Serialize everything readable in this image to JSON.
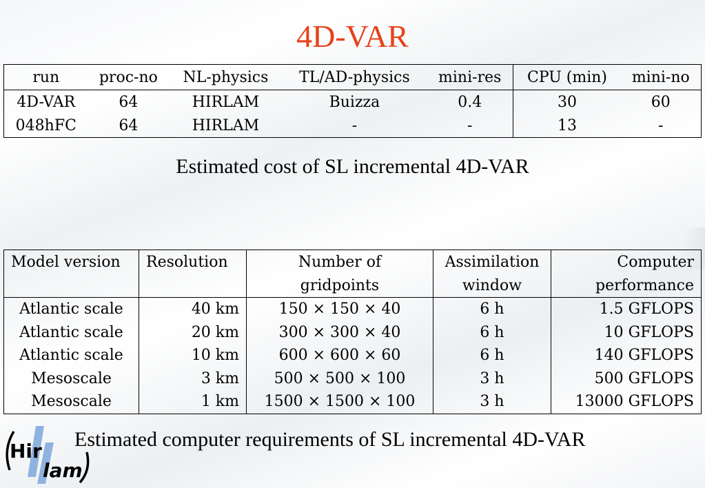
{
  "title": "4D-VAR",
  "table1": {
    "headers": [
      "run",
      "proc-no",
      "NL-physics",
      "TL/AD-physics",
      "mini-res",
      "CPU (min)",
      "mini-no"
    ],
    "rows": [
      [
        "4D-VAR",
        "64",
        "HIRLAM",
        "Buizza",
        "0.4",
        "30",
        "60"
      ],
      [
        "048hFC",
        "64",
        "HIRLAM",
        "-",
        "-",
        "13",
        "-"
      ]
    ]
  },
  "caption1": "Estimated cost of SL incremental 4D-VAR",
  "table2": {
    "headers_line1": [
      "Model version",
      "Resolution",
      "Number of",
      "Assimilation",
      "Computer"
    ],
    "headers_line2": [
      "",
      "",
      "gridpoints",
      "window",
      "performance"
    ],
    "rows": [
      [
        "Atlantic scale",
        "40 km",
        "150 × 150 × 40",
        "6 h",
        "1.5 GFLOPS"
      ],
      [
        "Atlantic scale",
        "20 km",
        "300 × 300 × 40",
        "6 h",
        "10 GFLOPS"
      ],
      [
        "Atlantic scale",
        "10 km",
        "600 × 600 × 60",
        "6 h",
        "140 GFLOPS"
      ],
      [
        "Mesoscale",
        "3 km",
        "500 × 500 × 100",
        "3 h",
        "500 GFLOPS"
      ],
      [
        "Mesoscale",
        "1 km",
        "1500 × 1500 × 100",
        "3 h",
        "13000 GFLOPS"
      ]
    ]
  },
  "caption2": "Estimated computer requirements of SL incremental 4D-VAR",
  "logo": {
    "part1": "Hir",
    "part2": "lam",
    "accent_color": "#8fb3e0"
  },
  "colors": {
    "title": "#e8401a"
  }
}
